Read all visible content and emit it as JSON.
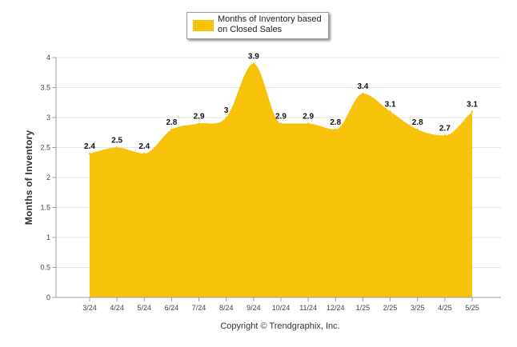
{
  "chart_data": {
    "type": "area",
    "categories": [
      "3/24",
      "4/24",
      "5/24",
      "6/24",
      "7/24",
      "8/24",
      "9/24",
      "10/24",
      "11/24",
      "12/24",
      "1/25",
      "2/25",
      "3/25",
      "4/25",
      "5/25"
    ],
    "series": [
      {
        "name": "Months of Inventory based on Closed Sales",
        "values": [
          2.4,
          2.5,
          2.4,
          2.8,
          2.9,
          3,
          3.9,
          2.9,
          2.9,
          2.8,
          3.4,
          3.1,
          2.8,
          2.7,
          3.1
        ]
      }
    ],
    "data_labels": [
      "2.4",
      "2.5",
      "2.4",
      "2.8",
      "2.9",
      "3",
      "3.9",
      "2.9",
      "2.9",
      "2.8",
      "3.4",
      "3.1",
      "2.8",
      "2.7",
      "3.1"
    ],
    "ylabel": "Months of Inventory",
    "xlabel": "",
    "ylim": [
      0,
      4
    ],
    "yticks": [
      "0",
      "0.5",
      "1",
      "1.5",
      "2",
      "2.5",
      "3",
      "3.5",
      "4"
    ],
    "grid": true,
    "legend_position": "top-center",
    "colors": {
      "area": "#F7C20A",
      "grid": "#e6e6e6",
      "axis": "#a0a0a0"
    }
  },
  "legend": {
    "label": "Months of Inventory based on Closed Sales"
  },
  "footer": {
    "copyright": "Copyright © Trendgraphix, Inc."
  }
}
